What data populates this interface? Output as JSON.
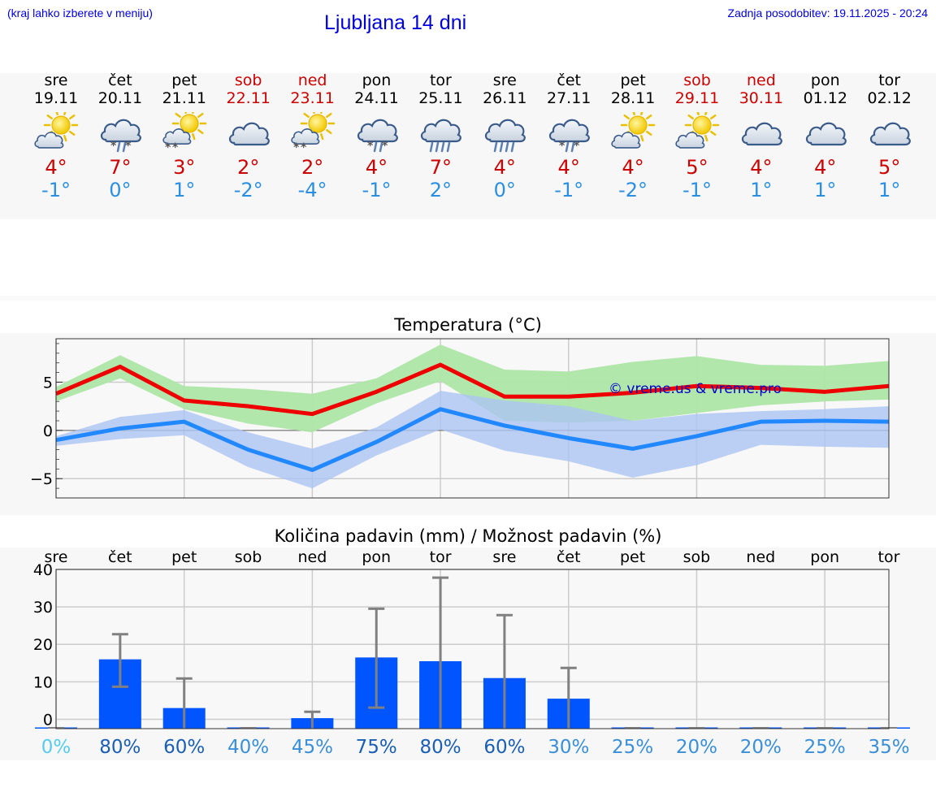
{
  "header": {
    "hint": "(kraj lahko izberete v meniju)",
    "title": "Ljubljana 14 dni",
    "updated": "Zadnja posodobitev: 19.11.2025 - 20:24"
  },
  "days": [
    {
      "name": "sre",
      "date": "19.11",
      "weekend": false,
      "icon": "sun-cloud-icon",
      "tmax": "4°",
      "tmin": "-1°"
    },
    {
      "name": "čet",
      "date": "20.11",
      "weekend": false,
      "icon": "cloud-snow-rain-icon",
      "tmax": "7°",
      "tmin": "0°"
    },
    {
      "name": "pet",
      "date": "21.11",
      "weekend": false,
      "icon": "sun-cloud-snow-icon",
      "tmax": "3°",
      "tmin": "1°"
    },
    {
      "name": "sob",
      "date": "22.11",
      "weekend": true,
      "icon": "cloud-icon",
      "tmax": "2°",
      "tmin": "-2°"
    },
    {
      "name": "ned",
      "date": "23.11",
      "weekend": true,
      "icon": "sun-cloud-snow-icon",
      "tmax": "2°",
      "tmin": "-4°"
    },
    {
      "name": "pon",
      "date": "24.11",
      "weekend": false,
      "icon": "cloud-snow-rain-icon",
      "tmax": "4°",
      "tmin": "-1°"
    },
    {
      "name": "tor",
      "date": "25.11",
      "weekend": false,
      "icon": "cloud-rain-icon",
      "tmax": "7°",
      "tmin": "2°"
    },
    {
      "name": "sre",
      "date": "26.11",
      "weekend": false,
      "icon": "cloud-rain-icon",
      "tmax": "4°",
      "tmin": "0°"
    },
    {
      "name": "čet",
      "date": "27.11",
      "weekend": false,
      "icon": "cloud-snow-rain-icon",
      "tmax": "4°",
      "tmin": "-1°"
    },
    {
      "name": "pet",
      "date": "28.11",
      "weekend": false,
      "icon": "sun-cloud-icon",
      "tmax": "4°",
      "tmin": "-2°"
    },
    {
      "name": "sob",
      "date": "29.11",
      "weekend": true,
      "icon": "sun-cloud-icon",
      "tmax": "5°",
      "tmin": "-1°"
    },
    {
      "name": "ned",
      "date": "30.11",
      "weekend": true,
      "icon": "cloud-icon",
      "tmax": "4°",
      "tmin": "1°"
    },
    {
      "name": "pon",
      "date": "01.12",
      "weekend": false,
      "icon": "cloud-icon",
      "tmax": "4°",
      "tmin": "1°"
    },
    {
      "name": "tor",
      "date": "02.12",
      "weekend": false,
      "icon": "cloud-icon",
      "tmax": "5°",
      "tmin": "1°"
    }
  ],
  "colors": {
    "max_line": "#ee0000",
    "max_band": "#aee6a8",
    "min_line": "#2288ff",
    "min_band": "#abc4f2",
    "bar": "#0055ff",
    "error": "#808080",
    "watermark": "#0000cc",
    "weekend": "#cc0000",
    "min_text": "#2a8fe0",
    "title": "#0000dd"
  },
  "chart_data": [
    {
      "type": "line",
      "title": "Temperatura (°C)",
      "watermark": "© vreme.us & vreme.pro",
      "ylim": [
        -7,
        9.5
      ],
      "yticks": [
        -5,
        0,
        5
      ],
      "ytick_labels": [
        "−5",
        "0",
        "5"
      ],
      "x": [
        0,
        1,
        2,
        3,
        4,
        5,
        6,
        7,
        8,
        9,
        10,
        11,
        12,
        13
      ],
      "series": [
        {
          "name": "max",
          "values": [
            3.8,
            6.6,
            3.1,
            2.5,
            1.7,
            4.0,
            6.8,
            3.5,
            3.5,
            3.9,
            4.6,
            4.4,
            4.0,
            4.6
          ],
          "band_low": [
            3.0,
            5.4,
            2.2,
            0.7,
            -0.2,
            2.8,
            5.1,
            1.0,
            0.8,
            1.0,
            1.8,
            2.6,
            3.0,
            3.2
          ],
          "band_high": [
            4.5,
            7.8,
            4.6,
            4.3,
            3.8,
            5.4,
            8.9,
            6.3,
            6.1,
            7.1,
            7.7,
            6.8,
            6.7,
            7.2
          ]
        },
        {
          "name": "min",
          "values": [
            -1.0,
            0.2,
            0.9,
            -2.0,
            -4.1,
            -1.2,
            2.2,
            0.5,
            -0.8,
            -1.9,
            -0.6,
            0.9,
            1.0,
            0.9
          ],
          "band_low": [
            -1.6,
            -0.9,
            -0.5,
            -3.8,
            -6.0,
            -2.6,
            0.1,
            -2.1,
            -3.2,
            -4.9,
            -3.6,
            -1.5,
            -1.7,
            -1.8
          ],
          "band_high": [
            -0.6,
            1.4,
            2.1,
            -0.2,
            -1.9,
            0.3,
            4.1,
            3.1,
            2.5,
            1.0,
            1.7,
            2.0,
            2.2,
            2.5
          ]
        }
      ]
    },
    {
      "type": "bar",
      "title": "Količina padavin (mm) / Možnost padavin (%)",
      "categories": [
        "sre",
        "čet",
        "pet",
        "sob",
        "ned",
        "pon",
        "tor",
        "sre",
        "čet",
        "pet",
        "sob",
        "ned",
        "pon",
        "tor"
      ],
      "values": [
        0,
        16,
        3,
        0,
        0.3,
        16.5,
        15.5,
        11,
        5.5,
        0,
        0,
        0,
        0,
        0
      ],
      "err_low": [
        0,
        8.7,
        0,
        0,
        0,
        3.1,
        0,
        0,
        0,
        0,
        0,
        0,
        0,
        0
      ],
      "err_high": [
        0,
        22.7,
        10.9,
        0,
        2,
        29.5,
        37.8,
        27.8,
        13.7,
        0,
        0,
        0,
        0,
        0
      ],
      "ylim": [
        -2.5,
        40
      ],
      "yticks": [
        0,
        10,
        20,
        30,
        40
      ],
      "ytick_labels": [
        "0",
        "10",
        "20",
        "30",
        "40"
      ],
      "probability": [
        "0%",
        "80%",
        "60%",
        "40%",
        "45%",
        "75%",
        "80%",
        "60%",
        "30%",
        "25%",
        "20%",
        "20%",
        "25%",
        "35%"
      ],
      "probability_colors": [
        "#55ccee",
        "#1a5fb4",
        "#1a5fb4",
        "#3a8fd8",
        "#3a8fd8",
        "#1a5fb4",
        "#1a5fb4",
        "#1a5fb4",
        "#3a8fd8",
        "#3a8fd8",
        "#3a8fd8",
        "#3a8fd8",
        "#3a8fd8",
        "#3a8fd8"
      ]
    }
  ]
}
